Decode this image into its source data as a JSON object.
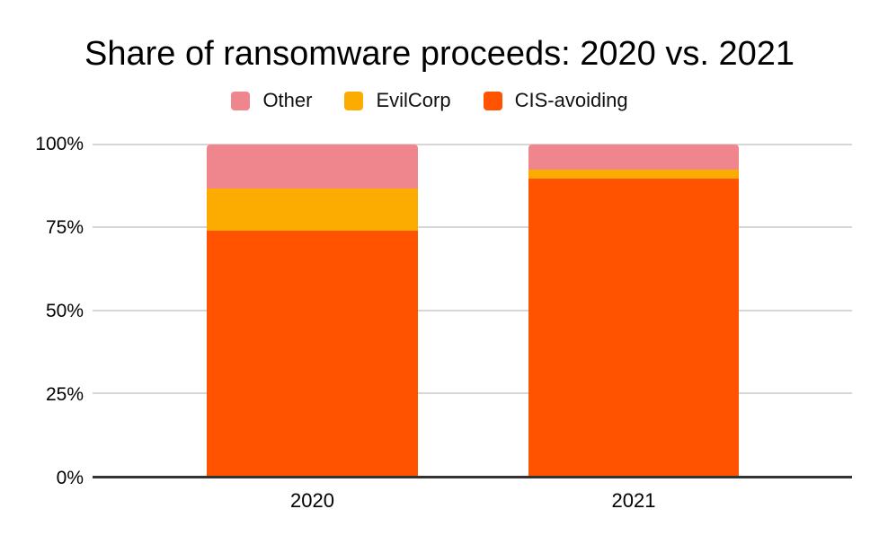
{
  "chart_data": {
    "type": "bar",
    "subtype": "stacked-100-percent",
    "title": "Share of ransomware proceeds: 2020 vs. 2021",
    "categories": [
      "2020",
      "2021"
    ],
    "series": [
      {
        "name": "CIS-avoiding",
        "color": "#ff5300",
        "values": [
          73.9,
          89.7
        ]
      },
      {
        "name": "EvilCorp",
        "color": "#fcab00",
        "values": [
          12.7,
          2.7
        ]
      },
      {
        "name": "Other",
        "color": "#ef868d",
        "values": [
          13.4,
          7.6
        ]
      }
    ],
    "legend": [
      {
        "label": "Other",
        "color": "#ef868d"
      },
      {
        "label": "EvilCorp",
        "color": "#fcab00"
      },
      {
        "label": "CIS-avoiding",
        "color": "#ff5300"
      }
    ],
    "legend_position": "top",
    "grid": true,
    "ylim": [
      0,
      100
    ],
    "y_ticks": [
      {
        "label": "100%",
        "value": 100
      },
      {
        "label": "75%",
        "value": 75
      },
      {
        "label": "50%",
        "value": 50
      },
      {
        "label": "25%",
        "value": 25
      },
      {
        "label": "0%",
        "value": 0
      }
    ],
    "xlabel": "",
    "ylabel": ""
  },
  "colors": {
    "background": "#ffffff",
    "gridline": "#d6d6d6",
    "axis_line": "#333333",
    "text": "#000000"
  }
}
